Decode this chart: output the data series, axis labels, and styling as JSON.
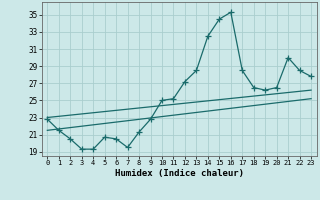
{
  "xlabel": "Humidex (Indice chaleur)",
  "background_color": "#cce8e8",
  "line_color": "#1a6b6b",
  "grid_color": "#aacece",
  "xlim": [
    -0.5,
    23.5
  ],
  "ylim": [
    18.5,
    36.5
  ],
  "yticks": [
    19,
    21,
    23,
    25,
    27,
    29,
    31,
    33,
    35
  ],
  "xticks": [
    0,
    1,
    2,
    3,
    4,
    5,
    6,
    7,
    8,
    9,
    10,
    11,
    12,
    13,
    14,
    15,
    16,
    17,
    18,
    19,
    20,
    21,
    22,
    23
  ],
  "main_x": [
    0,
    1,
    2,
    3,
    4,
    5,
    6,
    7,
    8,
    9,
    10,
    11,
    12,
    13,
    14,
    15,
    16,
    17,
    18,
    19,
    20,
    21,
    22,
    23
  ],
  "main_y": [
    22.8,
    21.5,
    20.5,
    19.3,
    19.3,
    20.7,
    20.5,
    19.5,
    21.3,
    22.8,
    25.0,
    25.2,
    27.2,
    28.5,
    32.5,
    34.5,
    35.3,
    28.5,
    26.5,
    26.2,
    26.5,
    30.0,
    28.5,
    27.8
  ],
  "trend1_x": [
    0,
    23
  ],
  "trend1_y": [
    23.0,
    26.2
  ],
  "trend2_x": [
    0,
    23
  ],
  "trend2_y": [
    21.5,
    25.2
  ]
}
